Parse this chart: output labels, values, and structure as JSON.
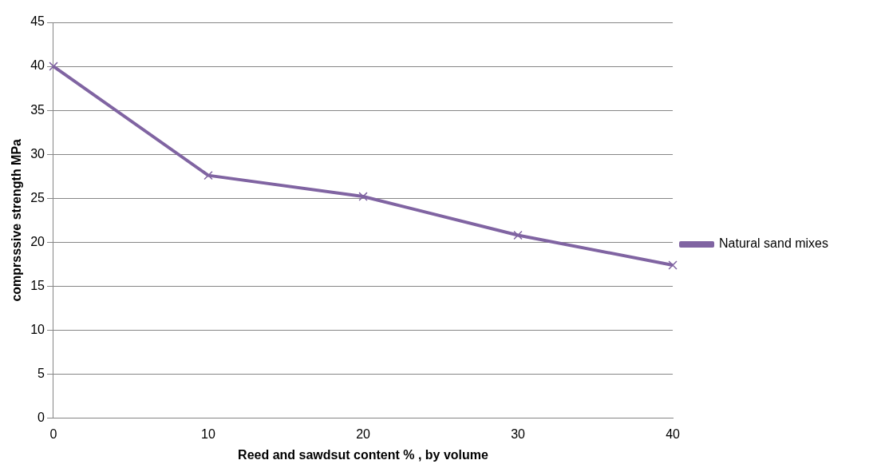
{
  "chart_data": {
    "type": "line",
    "xlabel": "Reed and sawdsut content % , by volume",
    "ylabel": "comprsssive strength MPa",
    "categories": [
      "0",
      "10",
      "20",
      "30",
      "40"
    ],
    "series": [
      {
        "name": "Natural sand mixes",
        "color": "#8064a2",
        "values": [
          40,
          27.6,
          25.2,
          20.8,
          17.4
        ]
      }
    ],
    "ylim": [
      0,
      45
    ],
    "yticks": [
      0,
      5,
      10,
      15,
      20,
      25,
      30,
      35,
      40,
      45
    ],
    "grid": "y",
    "legend": "right",
    "marker": "cross",
    "line_style": "solid"
  }
}
